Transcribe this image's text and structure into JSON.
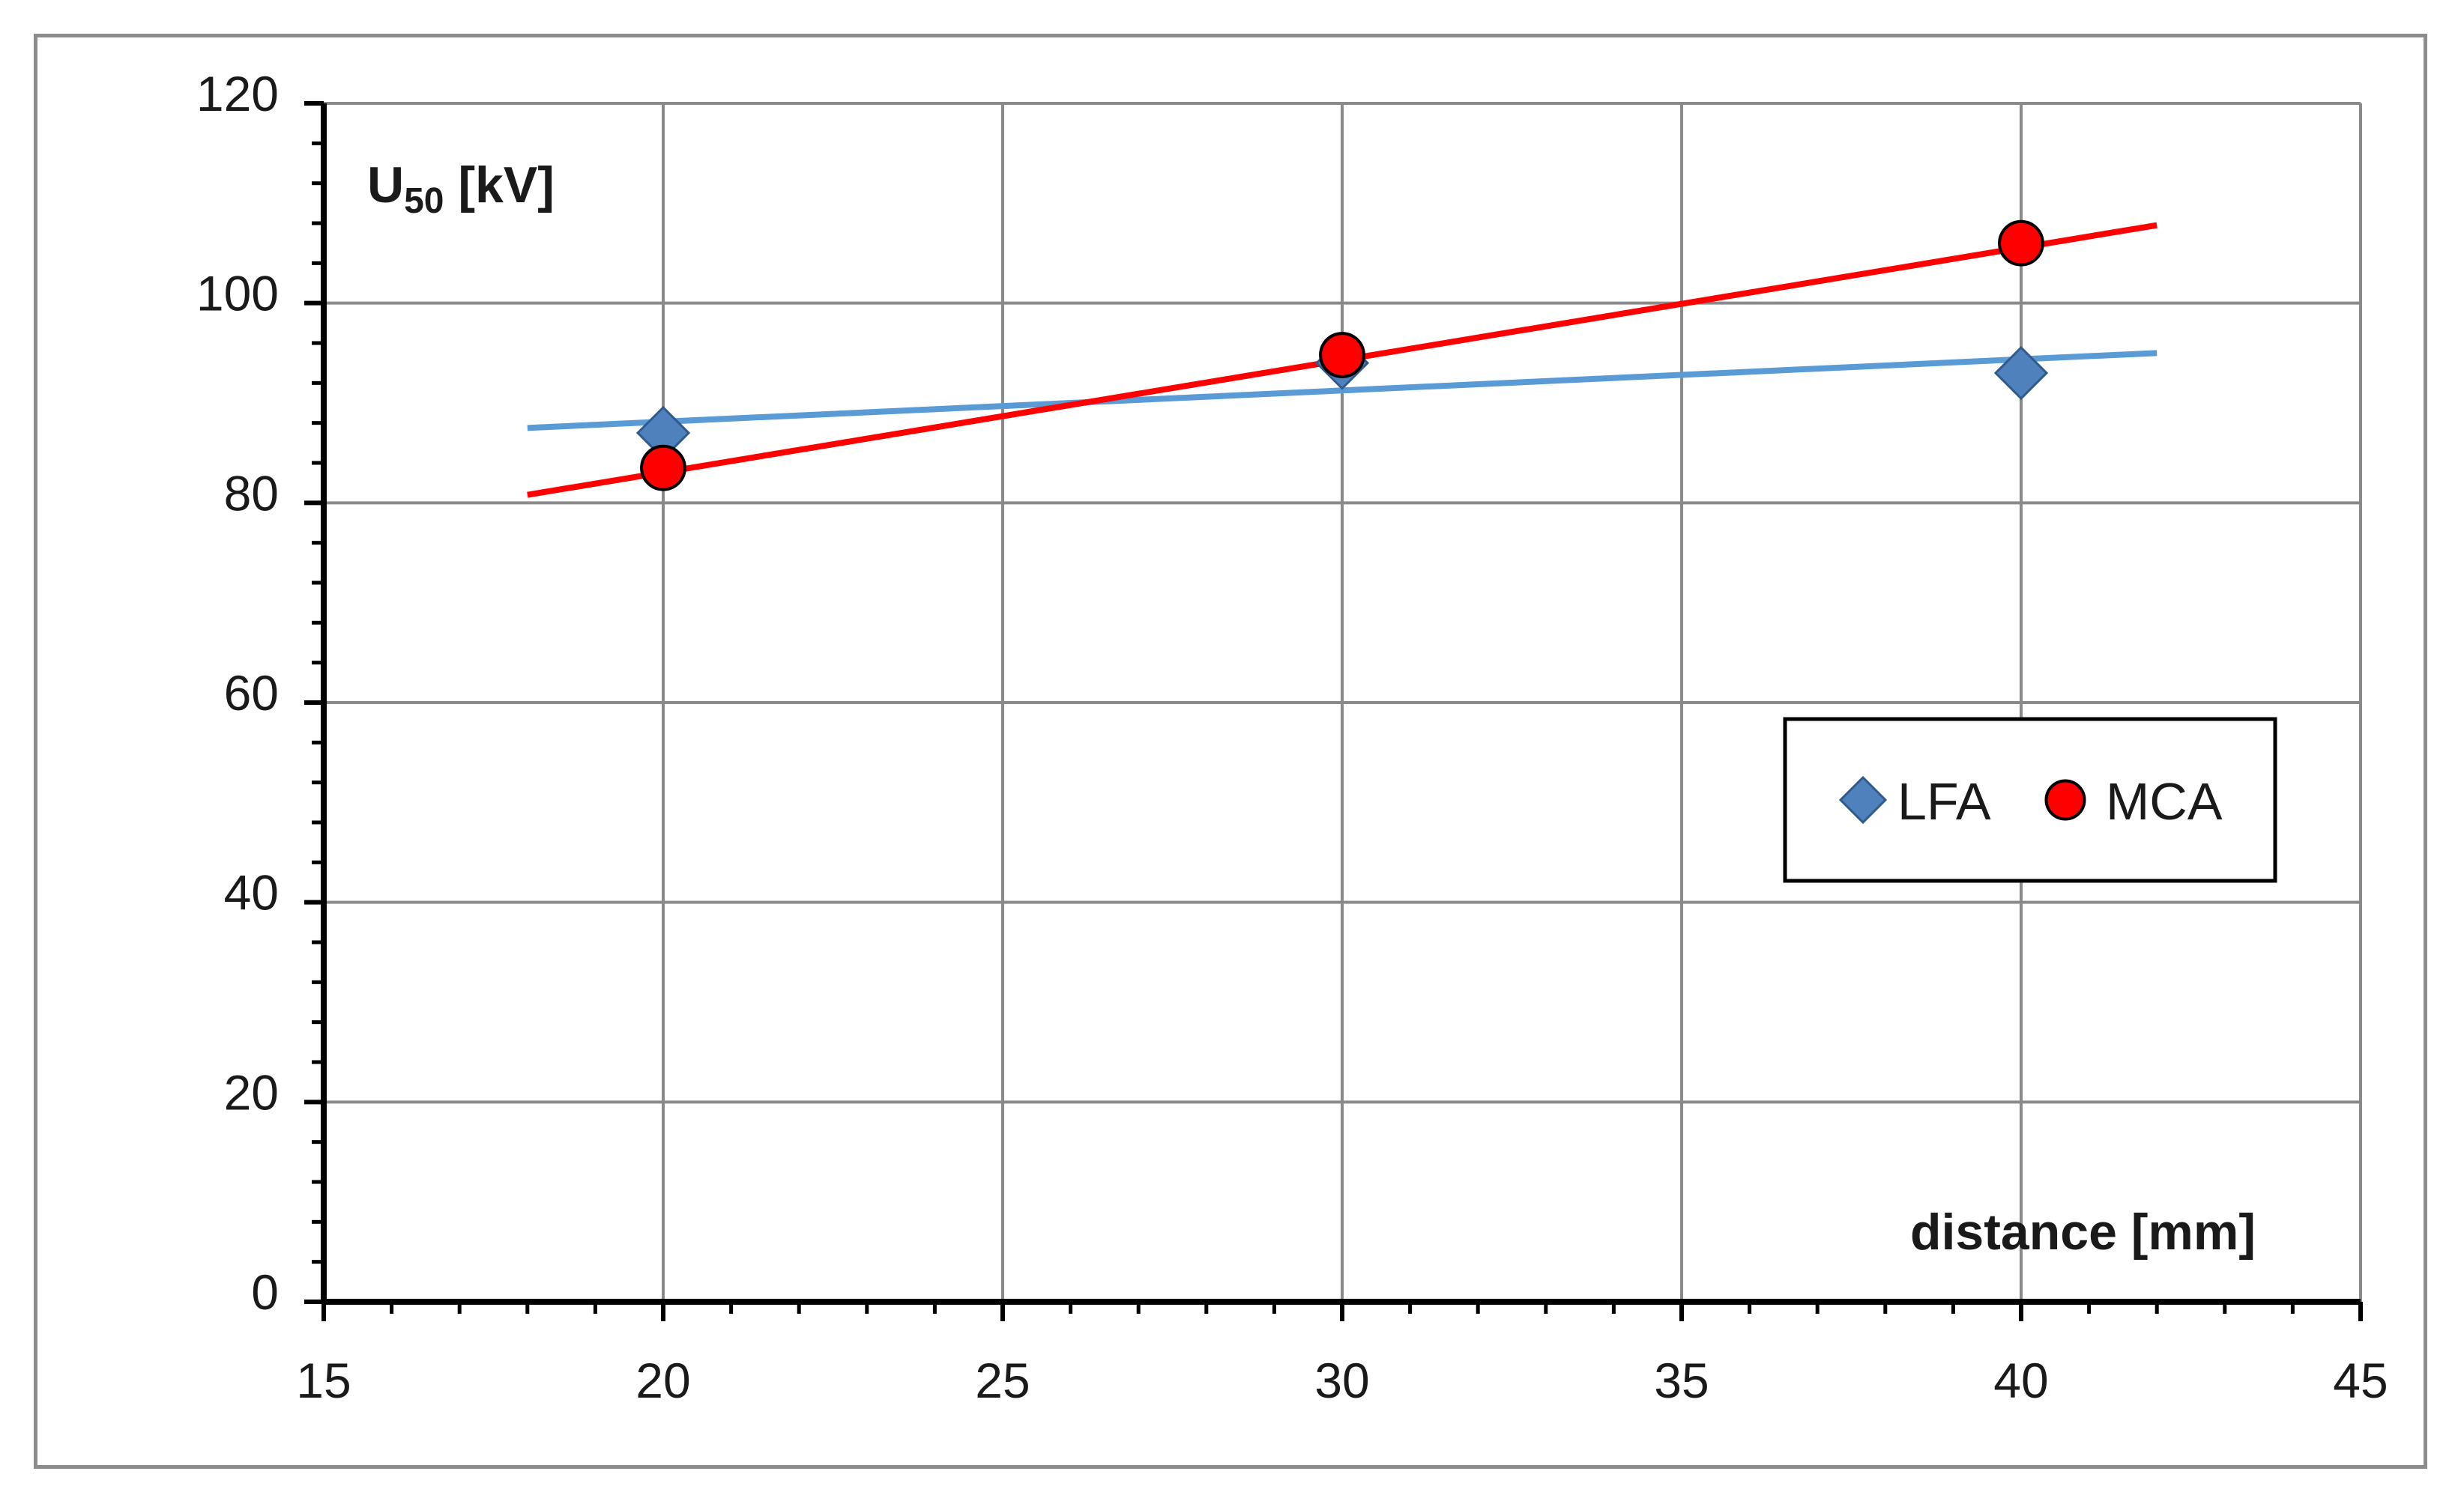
{
  "chart_data": {
    "type": "scatter",
    "title": "",
    "xlabel": "distance [mm]",
    "ylabel": "U",
    "ylabel_sub": "50",
    "ylabel_unit": " [kV]",
    "xlim": [
      15,
      45
    ],
    "ylim": [
      0,
      120
    ],
    "xticks": [
      15,
      20,
      25,
      30,
      35,
      40,
      45
    ],
    "yticks": [
      0,
      20,
      40,
      60,
      80,
      100,
      120
    ],
    "grid": true,
    "legend_position": "right-middle",
    "series": [
      {
        "name": "LFA",
        "marker": "diamond",
        "color": "#4f81bd",
        "line_color": "#5b9bd5",
        "x": [
          20,
          30,
          40
        ],
        "y": [
          87,
          94,
          93
        ],
        "trendline": {
          "x": [
            18,
            42
          ],
          "y": [
            87.5,
            95
          ]
        }
      },
      {
        "name": "MCA",
        "marker": "circle",
        "color": "#ff0000",
        "line_color": "#ff0000",
        "x": [
          20,
          30,
          40
        ],
        "y": [
          83.5,
          94.8,
          106
        ],
        "trendline": {
          "x": [
            18,
            42
          ],
          "y": [
            80.8,
            107.8
          ]
        }
      }
    ]
  }
}
